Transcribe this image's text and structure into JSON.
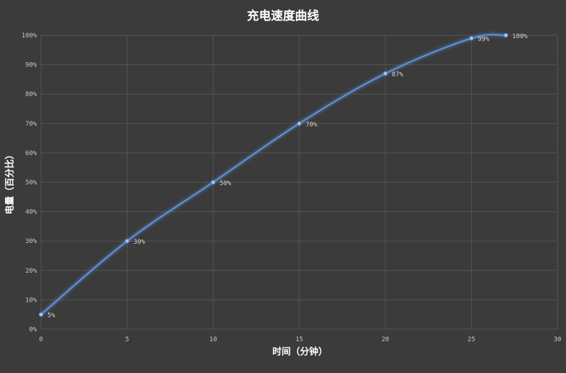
{
  "chart_data": {
    "type": "line",
    "title": "充电速度曲线",
    "xlabel": "时间（分钟）",
    "ylabel": "电量（百分比）",
    "xlim": [
      0,
      30
    ],
    "ylim": [
      0,
      100
    ],
    "xticks": [
      0,
      5,
      10,
      15,
      20,
      25,
      30
    ],
    "yticks": [
      0,
      10,
      20,
      30,
      40,
      50,
      60,
      70,
      80,
      90,
      100
    ],
    "ytick_suffix": "%",
    "grid": true,
    "legend": "none",
    "series": [
      {
        "x": [
          0,
          5,
          10,
          15,
          20,
          25,
          27
        ],
        "y": [
          5,
          30,
          50,
          70,
          87,
          99,
          100
        ],
        "labels": [
          "5%",
          "30%",
          "50%",
          "70%",
          "87%",
          "99%",
          "100%"
        ],
        "color": "#5b8fd6"
      }
    ],
    "colors": {
      "background": "#3b3b3b",
      "grid": "#555555",
      "line": "#5b8fd6",
      "text": "#ffffff"
    }
  }
}
